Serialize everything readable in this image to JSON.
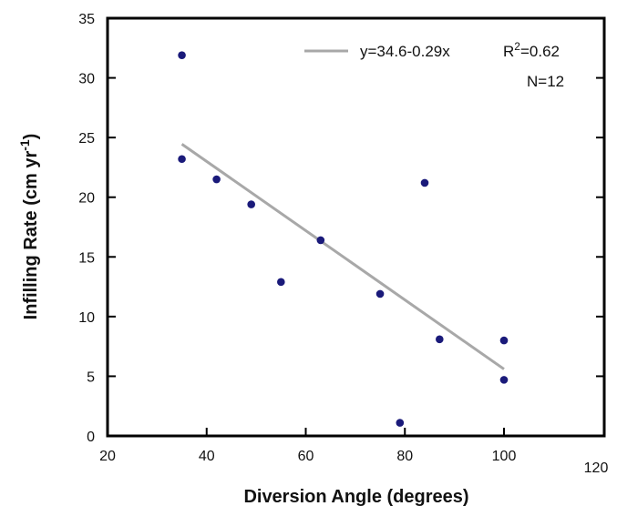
{
  "chart_data": {
    "type": "scatter",
    "xlabel": "Diversion Angle (degrees)",
    "ylabel_main": "Infilling Rate (cm yr",
    "ylabel_sup": "-1",
    "ylabel_close": ")",
    "xlim": [
      20,
      120
    ],
    "ylim": [
      0,
      35
    ],
    "x_ticks": [
      20,
      40,
      60,
      80,
      100,
      120
    ],
    "x_tick_labels": [
      "20",
      "40",
      "60",
      "80",
      "100",
      "120"
    ],
    "y_ticks": [
      0,
      5,
      10,
      15,
      20,
      25,
      30,
      35
    ],
    "y_tick_labels": [
      "0",
      "5",
      "10",
      "15",
      "20",
      "25",
      "30",
      "35"
    ],
    "grid": false,
    "point_color": "#1a1a7a",
    "fit_color": "#a8a8a8",
    "points": {
      "x": [
        35,
        35,
        42,
        49,
        55,
        63,
        75,
        79,
        84,
        87,
        100,
        100
      ],
      "y": [
        31.9,
        23.2,
        21.5,
        19.4,
        12.9,
        16.4,
        11.9,
        1.1,
        21.2,
        8.1,
        8.0,
        4.7
      ]
    },
    "fit": {
      "intercept": 34.6,
      "slope": -0.29,
      "x_range": [
        35,
        100
      ]
    },
    "legend": {
      "position": "top-right",
      "equation": "y=34.6-0.29x",
      "r2_prefix": "R",
      "r2_sup": "2",
      "r2_value": "=0.62",
      "n_label": "N=12"
    }
  }
}
